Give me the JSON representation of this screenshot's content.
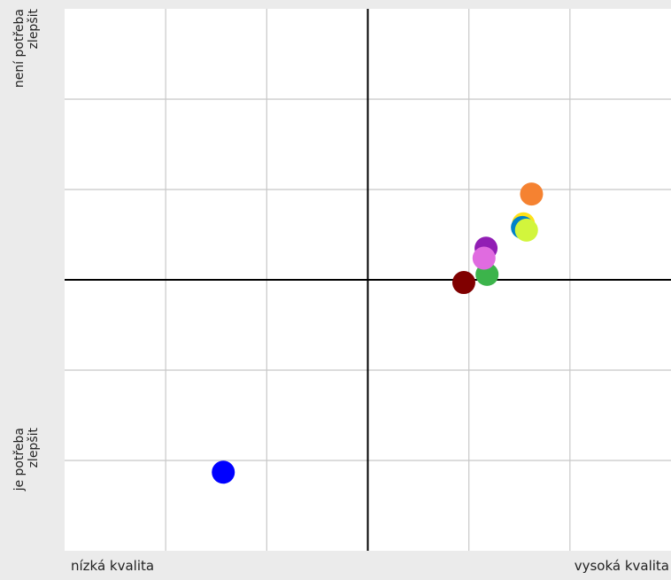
{
  "chart_data": {
    "type": "scatter",
    "title": "",
    "xlabel": "",
    "ylabel": "",
    "xlim": [
      -3,
      3
    ],
    "ylim": [
      -3,
      3
    ],
    "grid": true,
    "axes_through_origin": true,
    "labels": {
      "y_top": [
        "není potřeba",
        "zlepšit"
      ],
      "y_bottom": [
        "je potřeba",
        "zlepšit"
      ],
      "x_left": "nízká kvalita",
      "x_right": "vysoká kvalita"
    },
    "points": [
      {
        "x": 1.62,
        "y": 0.95,
        "color": "#f58231"
      },
      {
        "x": 1.54,
        "y": 0.62,
        "color": "#ffe119"
      },
      {
        "x": 1.53,
        "y": 0.58,
        "color": "#0082c8"
      },
      {
        "x": 1.57,
        "y": 0.55,
        "color": "#d2f53c"
      },
      {
        "x": 1.17,
        "y": 0.35,
        "color": "#911eb4"
      },
      {
        "x": 1.18,
        "y": 0.06,
        "color": "#3cb44b"
      },
      {
        "x": 1.15,
        "y": 0.24,
        "color": "#e06be0"
      },
      {
        "x": 0.95,
        "y": -0.03,
        "color": "#800000"
      },
      {
        "x": -1.43,
        "y": -2.13,
        "color": "#0000ff"
      }
    ]
  }
}
